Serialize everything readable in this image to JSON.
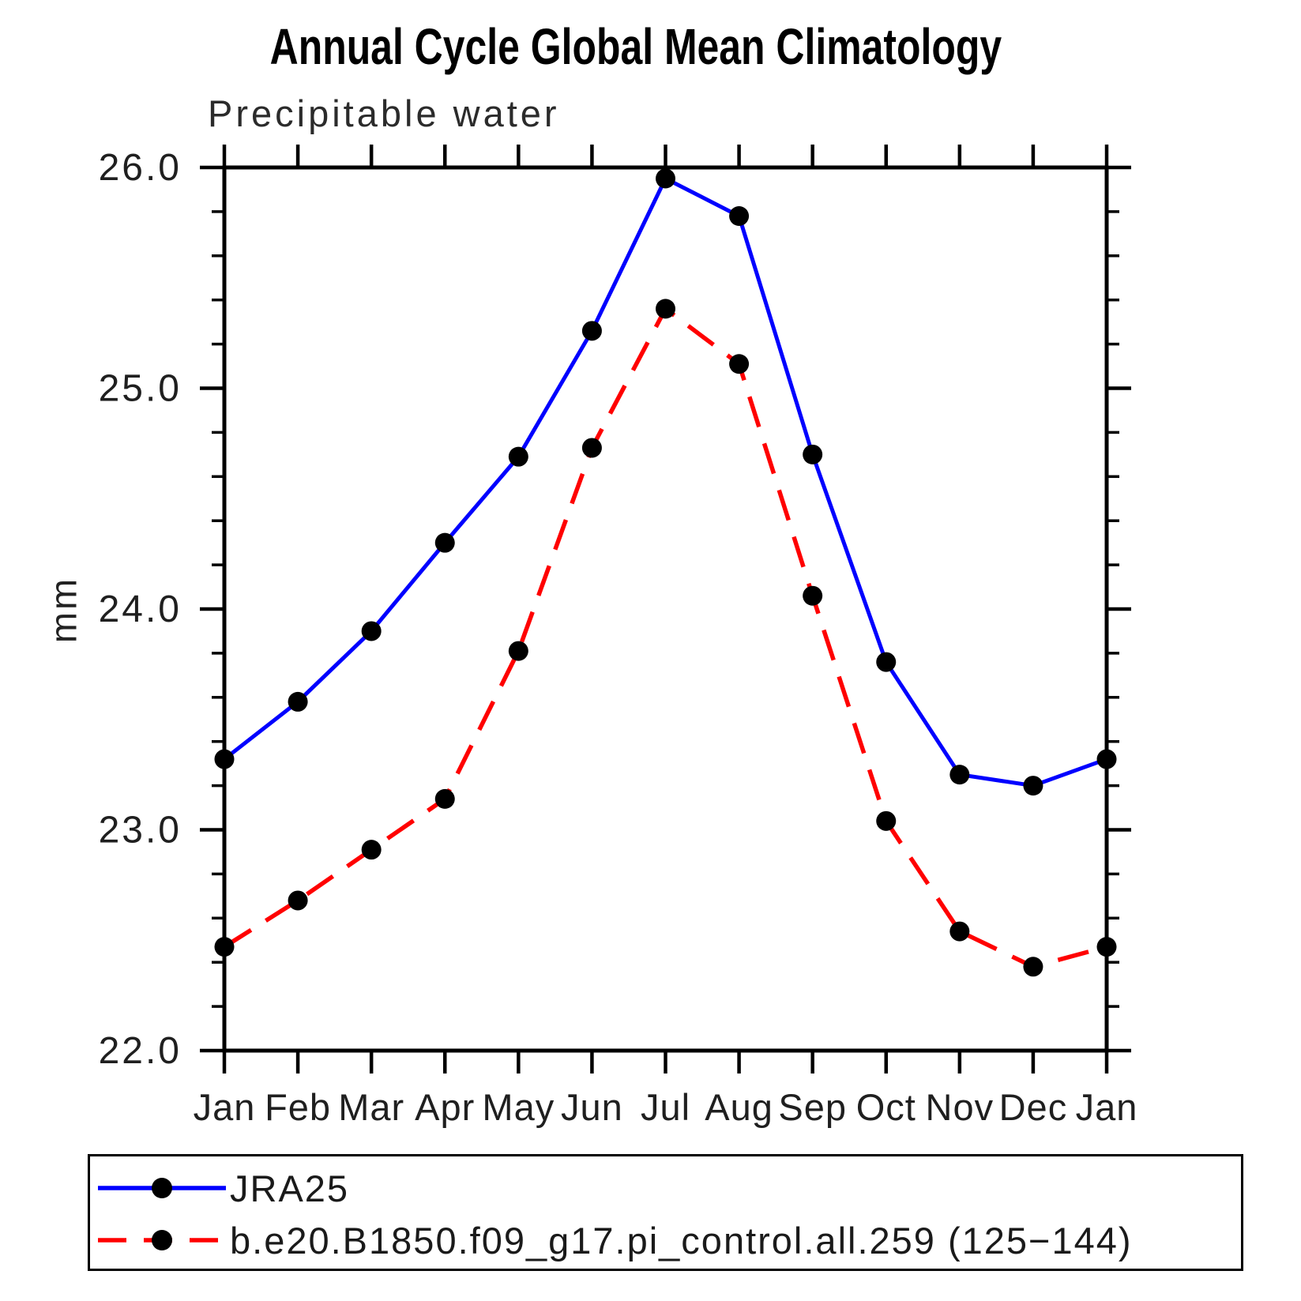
{
  "header": {
    "title": "Annual Cycle Global Mean Climatology",
    "subtitle": "Precipitable water"
  },
  "y_axis": {
    "label": "mm",
    "major_tick_labels": [
      "26.0",
      "25.0",
      "24.0",
      "23.0",
      "22.0"
    ]
  },
  "x_axis": {
    "labels": [
      "Jan",
      "Feb",
      "Mar",
      "Apr",
      "May",
      "Jun",
      "Jul",
      "Aug",
      "Sep",
      "Oct",
      "Nov",
      "Dec",
      "Jan"
    ]
  },
  "colors": {
    "jra25_line": "#0000ff",
    "model_line": "#ff0000",
    "marker": "#000000",
    "axis": "#000000"
  },
  "legend": {
    "items": [
      {
        "label": "JRA25",
        "color": "#0000ff",
        "line_style": "solid",
        "marker": "filled-circle",
        "marker_color": "#000000"
      },
      {
        "label": "b.e20.B1850.f09_g17.pi_control.all.259 (125−144)",
        "color": "#ff0000",
        "line_style": "dashed",
        "marker": "filled-circle",
        "marker_color": "#000000"
      }
    ]
  },
  "chart_data": {
    "type": "line",
    "title": "Annual Cycle Global Mean Climatology",
    "subtitle": "Precipitable water",
    "xlabel": "",
    "ylabel": "mm",
    "ylim": [
      22.0,
      26.0
    ],
    "grid": "off",
    "legend_position": "bottom",
    "categories": [
      "Jan",
      "Feb",
      "Mar",
      "Apr",
      "May",
      "Jun",
      "Jul",
      "Aug",
      "Sep",
      "Oct",
      "Nov",
      "Dec",
      "Jan"
    ],
    "yticks": [
      {
        "value": 26.0,
        "label": "26.0"
      },
      {
        "value": 25.0,
        "label": "25.0"
      },
      {
        "value": 24.0,
        "label": "24.0"
      },
      {
        "value": 23.0,
        "label": "23.0"
      },
      {
        "value": 22.0,
        "label": "22.0"
      }
    ],
    "ytick_minor_step": 0.2,
    "series": [
      {
        "name": "JRA25",
        "color": "#0000ff",
        "line_style": "solid",
        "marker": "filled-circle",
        "marker_color": "#000000",
        "values": [
          23.32,
          23.58,
          23.9,
          24.3,
          24.69,
          25.26,
          25.95,
          25.78,
          24.7,
          23.76,
          23.25,
          23.2,
          23.32
        ]
      },
      {
        "name": "b.e20.B1850.f09_g17.pi_control.all.259 (125−144)",
        "color": "#ff0000",
        "line_style": "dashed",
        "marker": "filled-circle",
        "marker_color": "#000000",
        "values": [
          22.47,
          22.68,
          22.91,
          23.14,
          23.81,
          24.73,
          25.36,
          25.11,
          24.06,
          23.04,
          22.54,
          22.38,
          22.47
        ]
      }
    ]
  }
}
